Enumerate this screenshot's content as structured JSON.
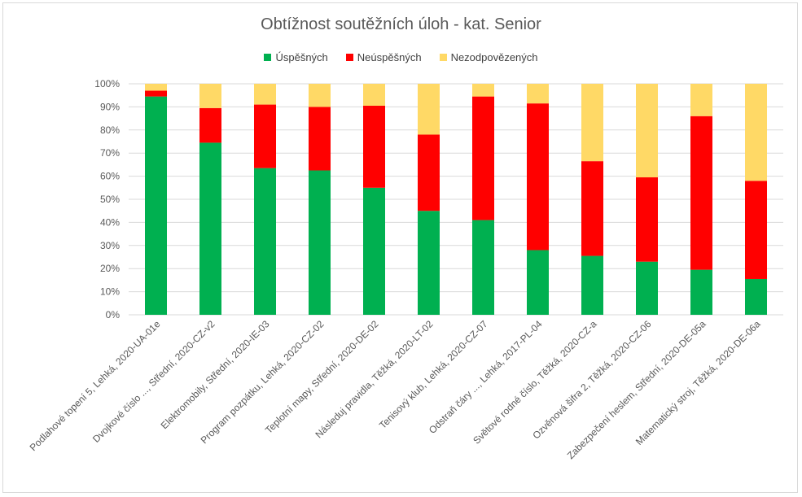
{
  "chart_data": {
    "type": "bar",
    "stacked": "100%",
    "title": "Obtížnost soutěžních úloh - kat. Senior",
    "categories": [
      "Podlahové topení 5, Lehká, 2020-UA-01e",
      "Dvojkové číslo ..., Střední, 2020-CZ-v2",
      "Elektromobily, Střední, 2020-IE-03",
      "Program pozpátku, Lehká, 2020-CZ-02",
      "Teplotní mapy, Střední, 2020-DE-02",
      "Následuj pravidla, Těžká, 2020-LT-02",
      "Tenisový klub, Lehká, 2020-CZ-07",
      "Odstraň čáry ..., Lehká, 2017-PL-04",
      "Světové rodné číslo, Těžká, 2020-CZ-a",
      "Ozvěnová šifra 2, Těžká, 2020-CZ-06",
      "Zabezpečení heslem, Střední, 2020-DE-05a",
      "Matematický stroj, Těžká, 2020-DE-06a"
    ],
    "series": [
      {
        "name": "Úspěšných",
        "color": "#00b050",
        "values": [
          94.5,
          74.5,
          63.5,
          62.5,
          55,
          45,
          41,
          28,
          25.5,
          23,
          19.5,
          15.5
        ]
      },
      {
        "name": "Neúspěšných",
        "color": "#ff0000",
        "values": [
          2.5,
          15,
          27.5,
          27.5,
          35.5,
          33,
          53.5,
          63.5,
          41,
          36.5,
          66.5,
          42.5
        ]
      },
      {
        "name": "Nezodpovězených",
        "color": "#ffd966",
        "values": [
          3,
          10.5,
          9,
          10,
          9.5,
          22,
          5.5,
          8.5,
          33.5,
          40.5,
          14,
          42
        ]
      }
    ],
    "ylim": [
      0,
      100
    ],
    "yticks": [
      "0%",
      "10%",
      "20%",
      "30%",
      "40%",
      "50%",
      "60%",
      "70%",
      "80%",
      "90%",
      "100%"
    ],
    "grid": true,
    "legend_position": "top"
  }
}
